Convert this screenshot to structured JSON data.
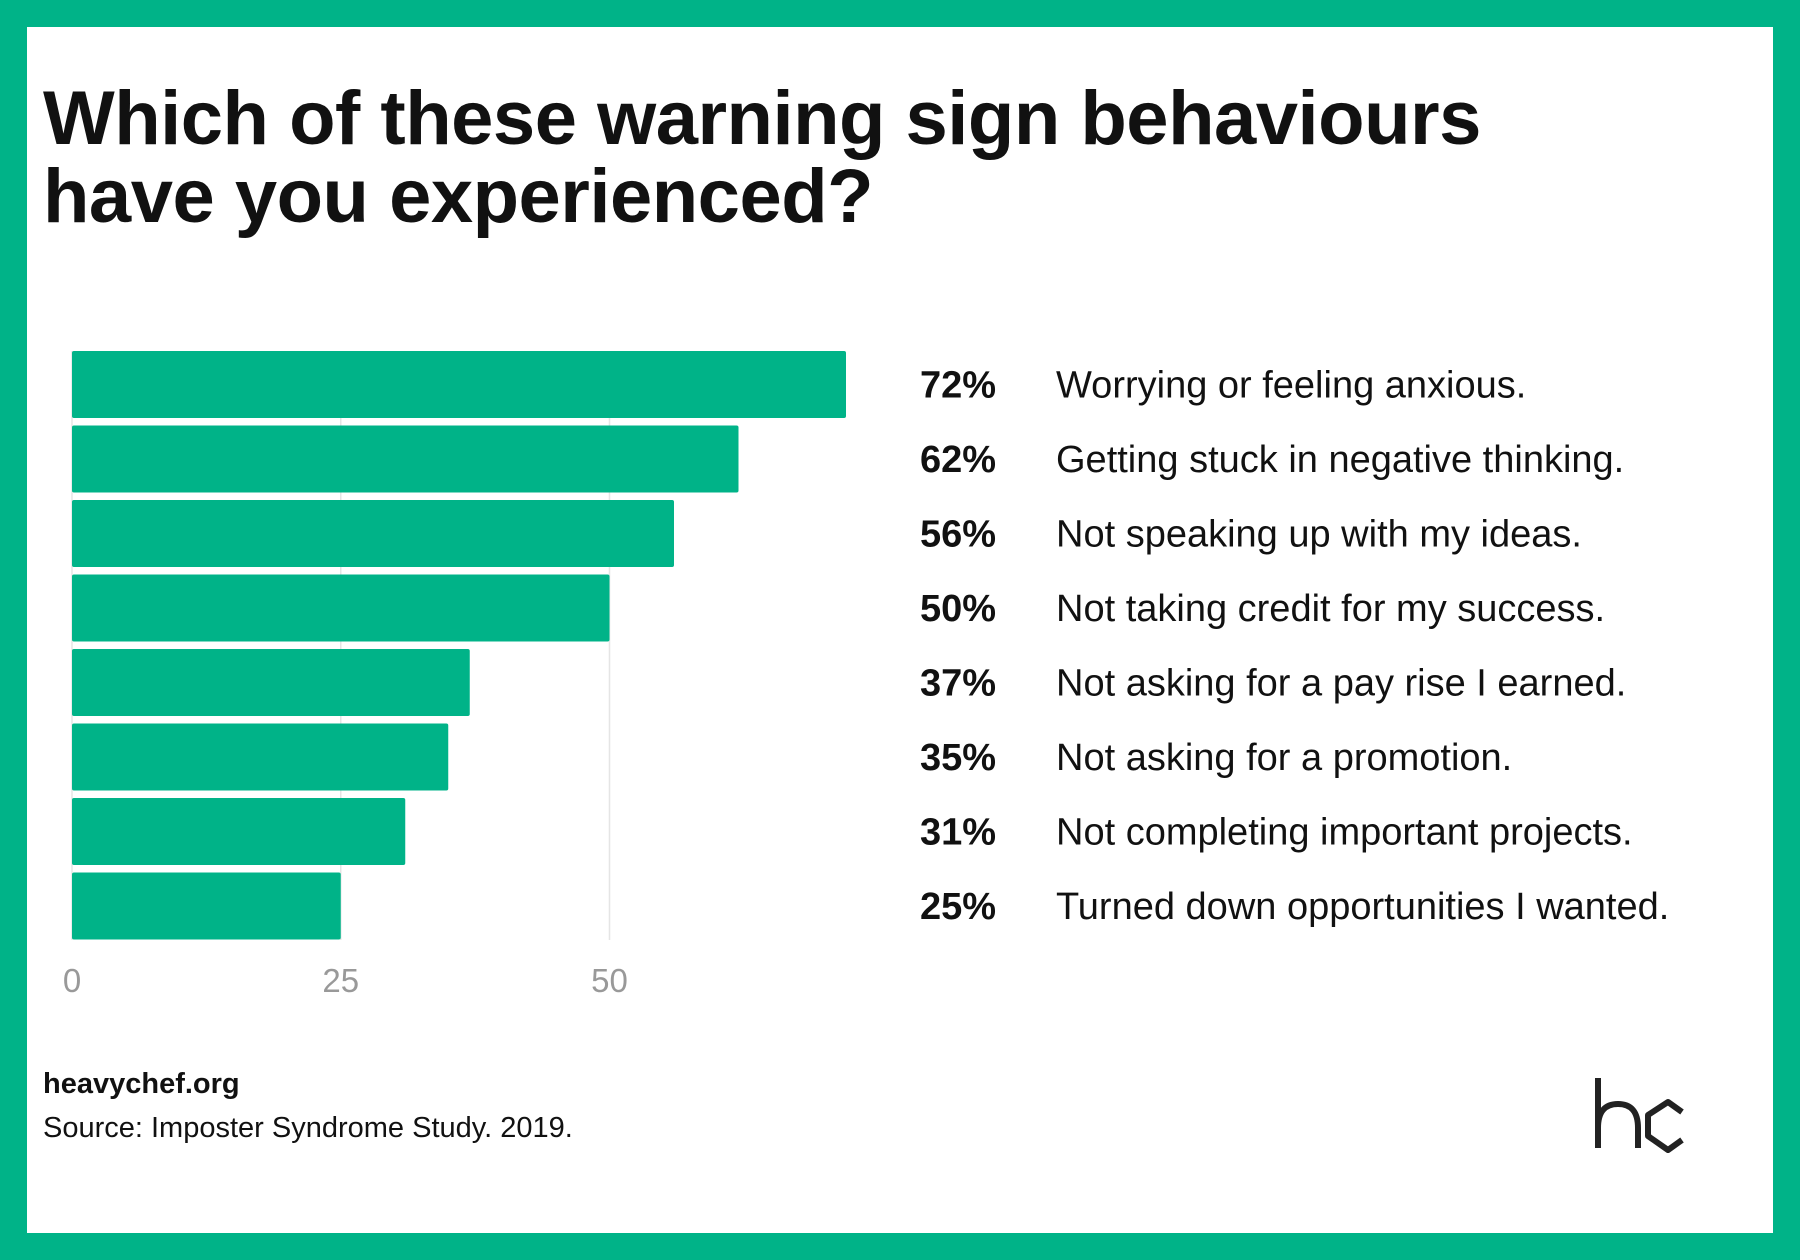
{
  "chart_data": {
    "type": "bar",
    "orientation": "horizontal",
    "title": "Which of these warning sign behaviours have you experienced?",
    "categories": [
      "Worrying or feeling anxious.",
      "Getting stuck in negative thinking.",
      "Not speaking up with my ideas.",
      "Not taking credit for my success.",
      "Not asking for a pay rise I earned.",
      "Not asking for a promotion.",
      "Not completing important projects.",
      "Turned down opportunities I wanted."
    ],
    "values": [
      72,
      62,
      56,
      50,
      37,
      35,
      31,
      25
    ],
    "value_labels": [
      "72%",
      "62%",
      "56%",
      "50%",
      "37%",
      "35%",
      "31%",
      "25%"
    ],
    "xticks": [
      "0",
      "25",
      "50"
    ],
    "xlim": [
      0,
      100
    ],
    "grid": true,
    "bar_color": "#00b388"
  },
  "footer": {
    "site": "heavychef.org",
    "source": "Source: Imposter Syndrome Study. 2019."
  },
  "logo_icon": "heavychef-hc-logo",
  "colors": {
    "accent": "#00b388",
    "text": "#111111",
    "tick": "#999999",
    "grid": "#e5e5e5"
  }
}
